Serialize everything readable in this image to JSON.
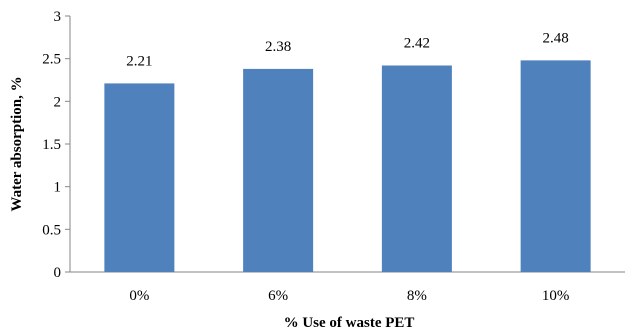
{
  "chart_data": {
    "type": "bar",
    "categories": [
      "0%",
      "6%",
      "8%",
      "10%"
    ],
    "values": [
      2.21,
      2.38,
      2.42,
      2.48
    ],
    "data_labels": [
      "2.21",
      "2.38",
      "2.42",
      "2.48"
    ],
    "xlabel": "% Use of waste PET",
    "ylabel": "Water absorption, %",
    "ylim": [
      0,
      3
    ],
    "yticks": [
      "0",
      "0.5",
      "1",
      "1.5",
      "2",
      "2.5",
      "3"
    ],
    "grid": false,
    "legend": "none",
    "bar_color": "#4F81BD",
    "axis_color": "#868686"
  }
}
